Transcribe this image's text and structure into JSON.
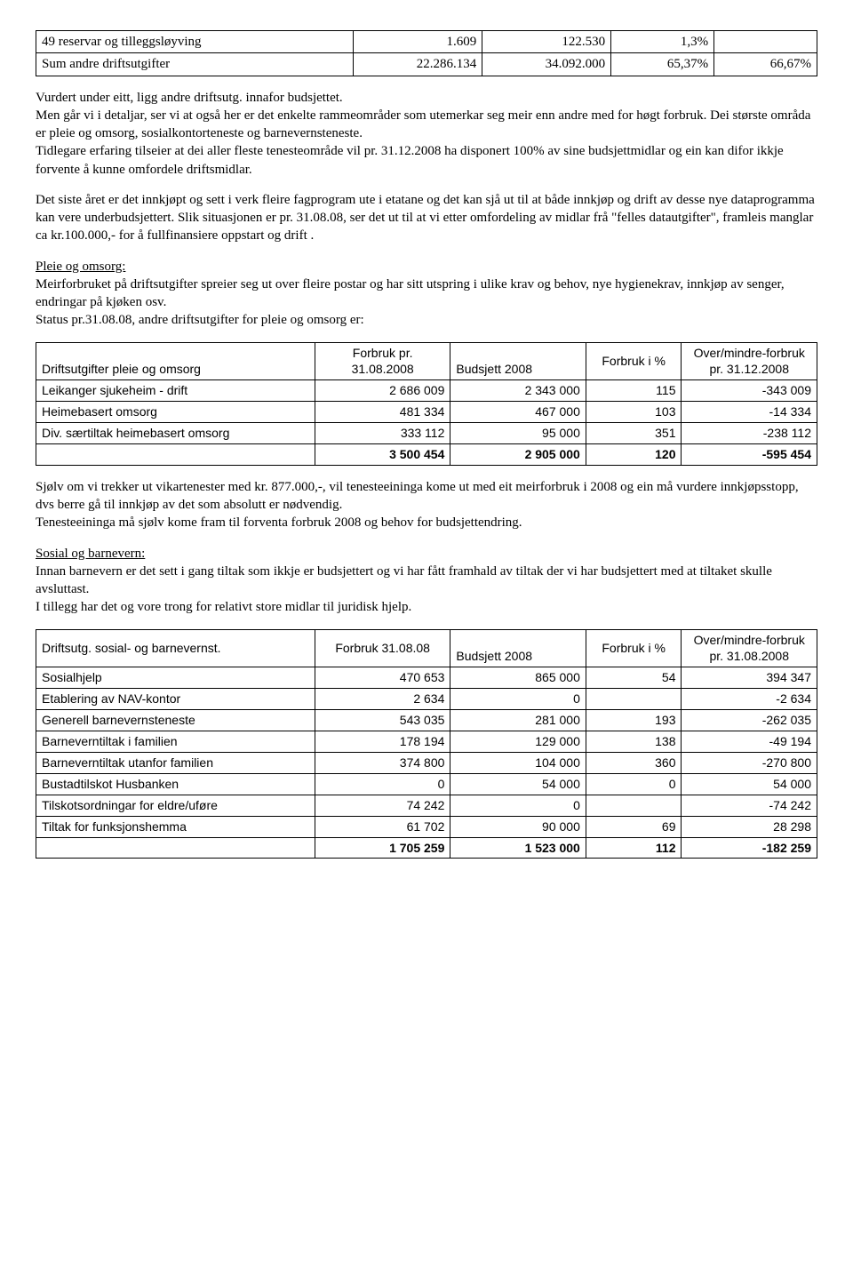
{
  "topTable": {
    "rows": [
      [
        "49 reservar og tilleggsløyving",
        "1.609",
        "122.530",
        "1,3%",
        ""
      ],
      [
        "Sum andre driftsutgifter",
        "22.286.134",
        "34.092.000",
        "65,37%",
        "66,67%"
      ]
    ]
  },
  "para1": "Vurdert under eitt, ligg andre driftsutg. innafor budsjettet.\nMen går vi i detaljar, ser vi at også her er det enkelte rammeområder som utemerkar seg meir enn andre med for høgt forbruk. Dei største områda er pleie og omsorg, sosialkontorteneste og barnevernsteneste.\nTidlegare erfaring tilseier at dei aller fleste tenesteområde vil pr. 31.12.2008 ha disponert 100% av sine budsjettmidlar og ein kan difor ikkje forvente å kunne omfordele driftsmidlar.",
  "para2": "Det siste året er det innkjøpt og sett i verk fleire fagprogram ute i etatane og det kan sjå ut til at både innkjøp og drift av desse nye dataprogramma kan vere underbudsjettert. Slik situasjonen er pr. 31.08.08, ser det ut til at vi etter omfordeling av midlar frå \"felles datautgifter\", framleis manglar ca kr.100.000,- for å fullfinansiere oppstart og drift .",
  "pleie": {
    "heading": "Pleie og omsorg:",
    "text": "Meirforbruket på driftsutgifter spreier seg ut over fleire postar og har sitt utspring i ulike krav og behov, nye hygienekrav, innkjøp av senger, endringar på kjøken osv.\nStatus pr.31.08.08, andre driftsutgifter for pleie og omsorg er:"
  },
  "pleieTable": {
    "head": {
      "c1": "Driftsutgifter pleie og omsorg",
      "c2": "Forbruk pr. 31.08.2008",
      "c3": "Budsjett 2008",
      "c4": "Forbruk i %",
      "c5": "Over/mindre-forbruk pr. 31.12.2008"
    },
    "rows": [
      [
        "Leikanger sjukeheim - drift",
        "2 686 009",
        "2 343 000",
        "115",
        "-343 009"
      ],
      [
        "Heimebasert omsorg",
        "481 334",
        "467 000",
        "103",
        "-14 334"
      ],
      [
        "Div. særtiltak heimebasert omsorg",
        "333 112",
        "95 000",
        "351",
        "-238 112"
      ]
    ],
    "total": [
      "",
      "3 500 454",
      "2 905 000",
      "120",
      "-595 454"
    ]
  },
  "para3": "Sjølv om vi trekker ut vikartenester med kr. 877.000,-, vil tenesteeininga kome ut med eit meirforbruk i 2008 og ein må vurdere innkjøpsstopp, dvs berre gå til innkjøp av det som absolutt er nødvendig.\nTenesteeininga må sjølv kome fram til forventa forbruk 2008 og behov for budsjettendring.",
  "sosial": {
    "heading": "Sosial og barnevern:",
    "text": "Innan barnevern er det sett i gang tiltak som ikkje er budsjettert og vi har fått framhald av tiltak der vi har budsjettert med at tiltaket skulle avsluttast.\nI tillegg har det og vore trong for relativt store midlar til juridisk hjelp."
  },
  "sosialTable": {
    "head": {
      "c1": "Driftsutg. sosial- og barnevernst.",
      "c2": "Forbruk 31.08.08",
      "c3": "Budsjett 2008",
      "c4": "Forbruk i %",
      "c5": "Over/mindre-forbruk pr. 31.08.2008"
    },
    "rows": [
      [
        "Sosialhjelp",
        "470 653",
        "865 000",
        "54",
        "394 347"
      ],
      [
        "Etablering av NAV-kontor",
        "2 634",
        "0",
        "",
        "-2 634"
      ],
      [
        "Generell barnevernsteneste",
        "543 035",
        "281 000",
        "193",
        "-262 035"
      ],
      [
        "Barneverntiltak i familien",
        "178 194",
        "129 000",
        "138",
        "-49 194"
      ],
      [
        "Barneverntiltak utanfor familien",
        "374 800",
        "104 000",
        "360",
        "-270 800"
      ],
      [
        "Bustadtilskot Husbanken",
        "0",
        "54 000",
        "0",
        "54 000"
      ],
      [
        "Tilskotsordningar for eldre/uføre",
        "74 242",
        "0",
        "",
        "-74 242"
      ],
      [
        "Tiltak for funksjonshemma",
        "61 702",
        "90 000",
        "69",
        "28 298"
      ]
    ],
    "total": [
      "",
      "1 705 259",
      "1 523 000",
      "112",
      "-182 259"
    ]
  }
}
